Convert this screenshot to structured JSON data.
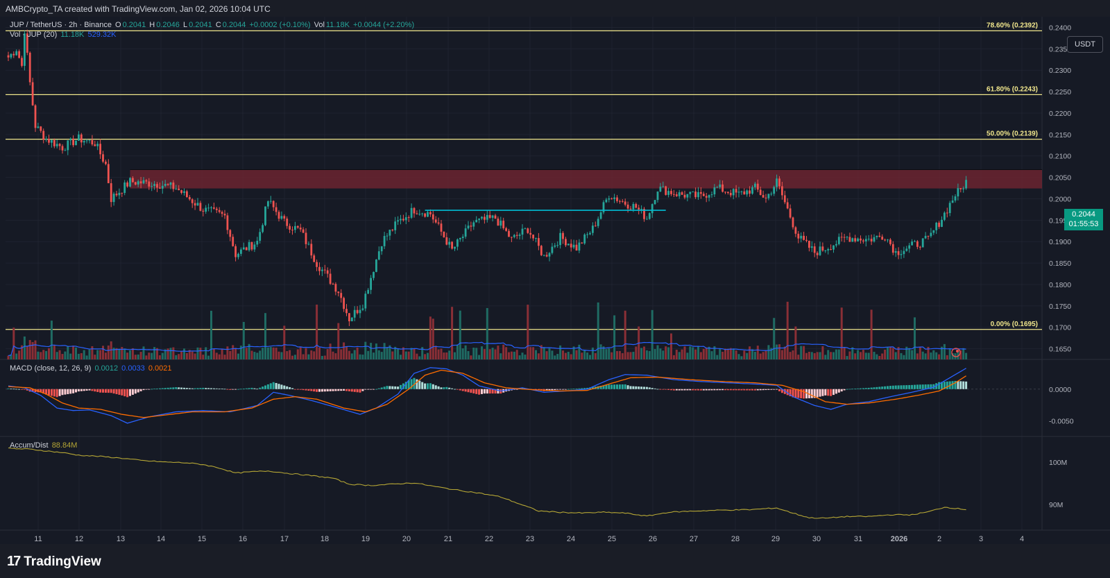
{
  "header": {
    "credit": "AMBCrypto_TA created with TradingView.com, Jan 02, 2026 10:04 UTC"
  },
  "legend": {
    "symbol": "JUP / TetherUS · 2h · Binance",
    "o_label": "O",
    "o": "0.2041",
    "h_label": "H",
    "h": "0.2046",
    "l_label": "L",
    "l": "0.2041",
    "c_label": "C",
    "c": "0.2044",
    "change": "+0.0002 (+0.10%)",
    "vol_label": "Vol",
    "vol": "11.18K",
    "vol_change": "+0.0044 (+2.20%)",
    "vol_ma_label": "Vol · JUP (20)",
    "vol_ma_a": "11.18K",
    "vol_ma_b": "529.32K"
  },
  "macd_legend": {
    "label": "MACD (close, 12, 26, 9)",
    "hist": "0.0012",
    "macd": "0.0033",
    "signal": "0.0021"
  },
  "ad_legend": {
    "label": "Accum/Dist",
    "value": "88.84M"
  },
  "currency_button": "USDT",
  "last_price": {
    "price": "0.2044",
    "countdown": "01:55:53"
  },
  "brand": {
    "name": "TradingView",
    "logo": "17"
  },
  "colors": {
    "up": "#26a69a",
    "down": "#ef5350",
    "fib": "#f0e68c",
    "macd": "#2962ff",
    "signal": "#ff6d00",
    "ad": "#b5a635",
    "zone": "#6b2430",
    "flat": "#00bcd4"
  },
  "chart_data": [
    {
      "type": "candlestick",
      "title": "JUP / TetherUS · 2h · Binance",
      "ylim": [
        0.1625,
        0.2425
      ],
      "y_ticks": [
        "0.2400",
        "0.2350",
        "0.2300",
        "0.2250",
        "0.2200",
        "0.2150",
        "0.2100",
        "0.2050",
        "0.2000",
        "0.1950",
        "0.1900",
        "0.1850",
        "0.1800",
        "0.1750",
        "0.1700",
        "0.1650"
      ],
      "x_ticks": [
        "11",
        "12",
        "13",
        "14",
        "15",
        "16",
        "17",
        "18",
        "19",
        "20",
        "21",
        "22",
        "23",
        "24",
        "25",
        "26",
        "27",
        "28",
        "29",
        "30",
        "31",
        "2026",
        "2",
        "3",
        "4"
      ],
      "anchors": [
        [
          0,
          0.233
        ],
        [
          3,
          0.235
        ],
        [
          5,
          0.231
        ],
        [
          6,
          0.2395
        ],
        [
          8,
          0.227
        ],
        [
          10,
          0.217
        ],
        [
          14,
          0.214
        ],
        [
          20,
          0.212
        ],
        [
          26,
          0.214
        ],
        [
          32,
          0.213
        ],
        [
          36,
          0.208
        ],
        [
          38,
          0.2
        ],
        [
          45,
          0.204
        ],
        [
          55,
          0.2035
        ],
        [
          62,
          0.2025
        ],
        [
          72,
          0.1975
        ],
        [
          80,
          0.196
        ],
        [
          84,
          0.187
        ],
        [
          92,
          0.19
        ],
        [
          96,
          0.1995
        ],
        [
          102,
          0.1945
        ],
        [
          108,
          0.1925
        ],
        [
          114,
          0.185
        ],
        [
          122,
          0.1785
        ],
        [
          126,
          0.172
        ],
        [
          131,
          0.1755
        ],
        [
          138,
          0.19
        ],
        [
          144,
          0.1945
        ],
        [
          150,
          0.1975
        ],
        [
          156,
          0.1965
        ],
        [
          164,
          0.188
        ],
        [
          172,
          0.1945
        ],
        [
          180,
          0.1955
        ],
        [
          186,
          0.1905
        ],
        [
          192,
          0.193
        ],
        [
          198,
          0.1865
        ],
        [
          204,
          0.191
        ],
        [
          210,
          0.1885
        ],
        [
          216,
          0.193
        ],
        [
          222,
          0.201
        ],
        [
          228,
          0.199
        ],
        [
          232,
          0.198
        ],
        [
          236,
          0.1955
        ],
        [
          240,
          0.2025
        ],
        [
          248,
          0.201
        ],
        [
          256,
          0.2005
        ],
        [
          262,
          0.2025
        ],
        [
          270,
          0.201
        ],
        [
          276,
          0.2025
        ],
        [
          280,
          0.2
        ],
        [
          284,
          0.204
        ],
        [
          288,
          0.1975
        ],
        [
          292,
          0.191
        ],
        [
          298,
          0.1875
        ],
        [
          302,
          0.1885
        ],
        [
          310,
          0.191
        ],
        [
          318,
          0.1905
        ],
        [
          324,
          0.1915
        ],
        [
          328,
          0.1875
        ],
        [
          334,
          0.189
        ],
        [
          340,
          0.1905
        ],
        [
          346,
          0.1965
        ],
        [
          350,
          0.201
        ],
        [
          352,
          0.202
        ],
        [
          354,
          0.2044
        ]
      ],
      "fib_levels": [
        {
          "label": "78.60% (0.2392)",
          "value": 0.2392
        },
        {
          "label": "61.80% (0.2243)",
          "value": 0.2243
        },
        {
          "label": "50.00% (0.2139)",
          "value": 0.2139
        },
        {
          "label": "0.00% (0.1695)",
          "value": 0.1695
        }
      ],
      "resistance_zone": {
        "top": 0.2068,
        "bottom": 0.2024,
        "from_bar": 45,
        "to_bar": 386
      },
      "flat_range": {
        "value": 0.1973,
        "from_bar": 154,
        "to_bar": 243
      }
    },
    {
      "type": "line",
      "title": "MACD (close, 12, 26, 9)",
      "ylim": [
        -0.0075,
        0.0047
      ],
      "y_ticks": [
        "0.0000",
        "-0.0050"
      ],
      "series": [
        {
          "name": "MACD",
          "anchors": [
            [
              0,
              0.0005
            ],
            [
              6,
              0.0002
            ],
            [
              12,
              -0.001
            ],
            [
              18,
              -0.003
            ],
            [
              24,
              -0.0034
            ],
            [
              30,
              -0.0033
            ],
            [
              38,
              -0.0042
            ],
            [
              44,
              -0.0054
            ],
            [
              52,
              -0.0044
            ],
            [
              62,
              -0.0036
            ],
            [
              72,
              -0.0034
            ],
            [
              82,
              -0.0036
            ],
            [
              92,
              -0.0026
            ],
            [
              98,
              -0.0005
            ],
            [
              104,
              -0.001
            ],
            [
              112,
              -0.0018
            ],
            [
              122,
              -0.003
            ],
            [
              130,
              -0.004
            ],
            [
              136,
              -0.003
            ],
            [
              144,
              -0.0008
            ],
            [
              150,
              0.0025
            ],
            [
              156,
              0.0034
            ],
            [
              162,
              0.0032
            ],
            [
              168,
              0.0022
            ],
            [
              174,
              0.0005
            ],
            [
              182,
              -0.0003
            ],
            [
              190,
              0.0002
            ],
            [
              198,
              -0.0005
            ],
            [
              206,
              -0.0003
            ],
            [
              214,
              0.0
            ],
            [
              222,
              0.0015
            ],
            [
              228,
              0.0023
            ],
            [
              236,
              0.0022
            ],
            [
              246,
              0.0015
            ],
            [
              256,
              0.0012
            ],
            [
              266,
              0.001
            ],
            [
              276,
              0.0008
            ],
            [
              284,
              0.0006
            ],
            [
              290,
              -0.0012
            ],
            [
              298,
              -0.0026
            ],
            [
              304,
              -0.0032
            ],
            [
              310,
              -0.0024
            ],
            [
              318,
              -0.002
            ],
            [
              326,
              -0.0012
            ],
            [
              334,
              -0.0005
            ],
            [
              342,
              0.0003
            ],
            [
              348,
              0.0018
            ],
            [
              354,
              0.0033
            ]
          ]
        },
        {
          "name": "Signal",
          "anchors": [
            [
              0,
              0.0004
            ],
            [
              8,
              0.0002
            ],
            [
              14,
              -0.0008
            ],
            [
              20,
              -0.0022
            ],
            [
              26,
              -0.003
            ],
            [
              34,
              -0.0032
            ],
            [
              42,
              -0.004
            ],
            [
              50,
              -0.0045
            ],
            [
              58,
              -0.0041
            ],
            [
              68,
              -0.0036
            ],
            [
              80,
              -0.0036
            ],
            [
              90,
              -0.003
            ],
            [
              98,
              -0.0016
            ],
            [
              106,
              -0.0012
            ],
            [
              114,
              -0.0016
            ],
            [
              124,
              -0.003
            ],
            [
              132,
              -0.0036
            ],
            [
              140,
              -0.0024
            ],
            [
              148,
              0.0
            ],
            [
              154,
              0.0022
            ],
            [
              160,
              0.003
            ],
            [
              168,
              0.0025
            ],
            [
              176,
              0.001
            ],
            [
              184,
              0.0002
            ],
            [
              194,
              -0.0001
            ],
            [
              204,
              -0.0003
            ],
            [
              214,
              -0.0002
            ],
            [
              222,
              0.0008
            ],
            [
              230,
              0.0018
            ],
            [
              240,
              0.0019
            ],
            [
              252,
              0.0015
            ],
            [
              264,
              0.0012
            ],
            [
              276,
              0.001
            ],
            [
              286,
              0.0006
            ],
            [
              294,
              -0.0004
            ],
            [
              302,
              -0.002
            ],
            [
              310,
              -0.0024
            ],
            [
              318,
              -0.0022
            ],
            [
              328,
              -0.0016
            ],
            [
              336,
              -0.001
            ],
            [
              344,
              -0.0003
            ],
            [
              350,
              0.001
            ],
            [
              354,
              0.0021
            ]
          ]
        }
      ]
    },
    {
      "type": "line",
      "title": "Accum/Dist",
      "ylim": [
        84,
        106
      ],
      "y_ticks": [
        {
          "label": "100M",
          "value": 100
        },
        {
          "label": "90M",
          "value": 90
        }
      ],
      "series": [
        {
          "name": "Accum/Dist",
          "anchors": [
            [
              0,
              103.2
            ],
            [
              8,
              103.0
            ],
            [
              14,
              102.6
            ],
            [
              20,
              102.2
            ],
            [
              26,
              101.6
            ],
            [
              34,
              101.3
            ],
            [
              42,
              100.9
            ],
            [
              50,
              100.3
            ],
            [
              58,
              100.0
            ],
            [
              66,
              99.8
            ],
            [
              72,
              99.4
            ],
            [
              78,
              98.6
            ],
            [
              84,
              97.4
            ],
            [
              90,
              97.7
            ],
            [
              96,
              97.9
            ],
            [
              104,
              97.3
            ],
            [
              112,
              96.8
            ],
            [
              120,
              96.2
            ],
            [
              126,
              94.8
            ],
            [
              134,
              94.5
            ],
            [
              142,
              94.8
            ],
            [
              150,
              95.1
            ],
            [
              158,
              94.2
            ],
            [
              166,
              93.4
            ],
            [
              174,
              92.7
            ],
            [
              182,
              91.8
            ],
            [
              190,
              89.9
            ],
            [
              196,
              88.5
            ],
            [
              204,
              88.2
            ],
            [
              212,
              88.0
            ],
            [
              220,
              88.2
            ],
            [
              228,
              88.0
            ],
            [
              236,
              87.3
            ],
            [
              244,
              88.2
            ],
            [
              254,
              88.5
            ],
            [
              264,
              88.7
            ],
            [
              274,
              88.8
            ],
            [
              284,
              89.2
            ],
            [
              290,
              88.0
            ],
            [
              296,
              86.9
            ],
            [
              302,
              86.8
            ],
            [
              310,
              87.2
            ],
            [
              318,
              87.2
            ],
            [
              326,
              87.6
            ],
            [
              334,
              87.6
            ],
            [
              340,
              88.3
            ],
            [
              346,
              89.4
            ],
            [
              354,
              88.84
            ]
          ]
        }
      ]
    },
    {
      "type": "bar",
      "title": "Vol · JUP (20)",
      "note_values": "volume bars share candle x positions"
    }
  ]
}
